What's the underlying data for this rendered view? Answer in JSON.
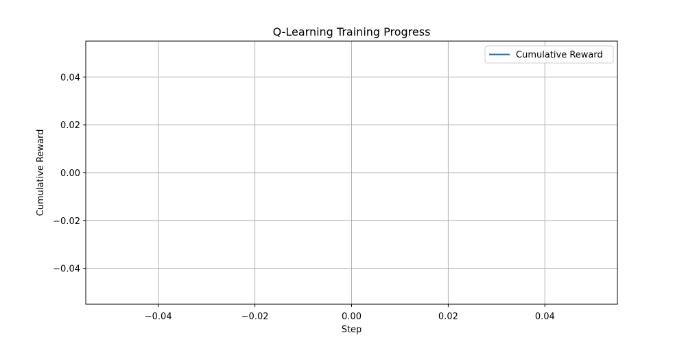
{
  "chart_data": {
    "type": "line",
    "title": "Q-Learning Training Progress",
    "xlabel": "Step",
    "ylabel": "Cumulative Reward",
    "xlim": [
      -0.055,
      0.055
    ],
    "ylim": [
      -0.055,
      0.055
    ],
    "xticks": [
      -0.04,
      -0.02,
      0.0,
      0.02,
      0.04
    ],
    "yticks": [
      -0.04,
      -0.02,
      0.0,
      0.02,
      0.04
    ],
    "xtick_labels": [
      "−0.04",
      "−0.02",
      "0.00",
      "0.02",
      "0.04"
    ],
    "ytick_labels": [
      "−0.04",
      "−0.02",
      "0.00",
      "0.02",
      "0.04"
    ],
    "grid": true,
    "legend_position": "top-right",
    "series": [
      {
        "name": "Cumulative Reward",
        "color": "#1f77b4",
        "x": [],
        "y": []
      }
    ]
  }
}
